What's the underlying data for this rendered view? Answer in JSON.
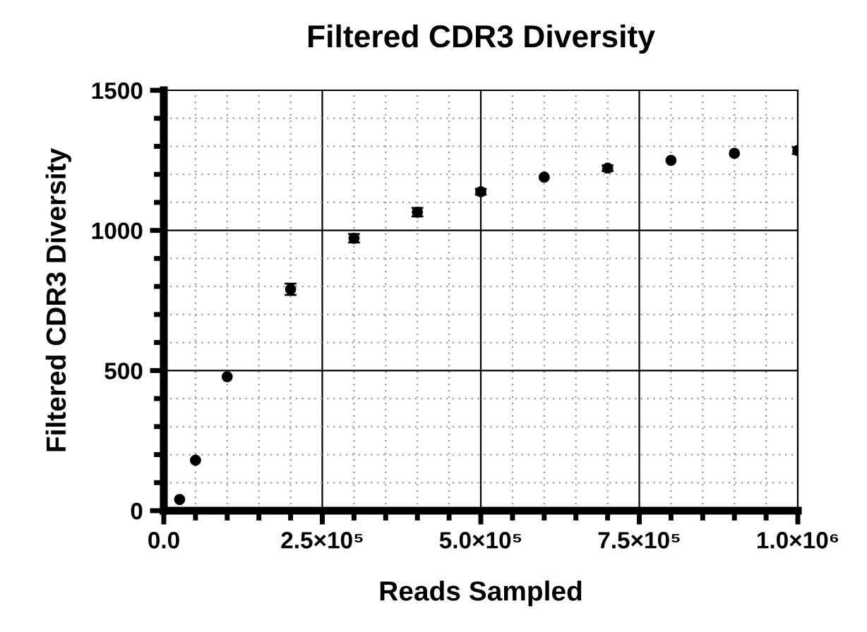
{
  "chart_data": {
    "type": "scatter",
    "title": "Filtered CDR3 Diversity",
    "xlabel": "Reads Sampled",
    "ylabel": "Filtered CDR3 Diversity",
    "x": [
      25000,
      50000,
      100000,
      200000,
      300000,
      400000,
      500000,
      600000,
      700000,
      800000,
      900000,
      1000000
    ],
    "series": [
      {
        "color": "#000000",
        "values": [
          40,
          180,
          478,
          790,
          972,
          1065,
          1138,
          1190,
          1222,
          1250,
          1275,
          1285
        ],
        "errors": [
          null,
          null,
          null,
          20,
          15,
          15,
          10,
          null,
          10,
          null,
          null,
          12
        ]
      }
    ],
    "xlim": [
      0,
      1000000
    ],
    "ylim": [
      0,
      1500
    ],
    "xticks": [
      {
        "value": 0,
        "label": "0.0"
      },
      {
        "value": 250000,
        "label": "2.5×10⁵"
      },
      {
        "value": 500000,
        "label": "5.0×10⁵"
      },
      {
        "value": 750000,
        "label": "7.5×10⁵"
      },
      {
        "value": 1000000,
        "label": "1.0×10⁶"
      }
    ],
    "yticks": [
      0,
      500,
      1000,
      1500
    ],
    "grid": true,
    "marker": "circle"
  }
}
